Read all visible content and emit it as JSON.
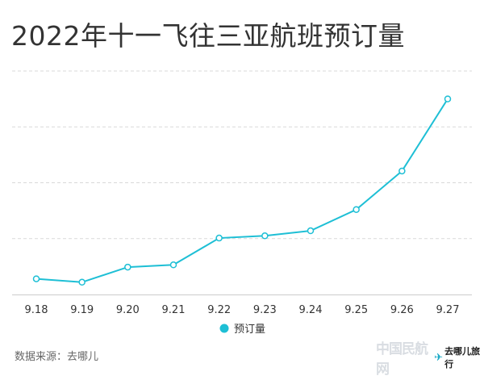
{
  "title": "2022年十一飞往三亚航班预订量",
  "source": "数据来源：去哪儿",
  "watermark": {
    "left_text": "中国民航网",
    "logo_text": "去哪儿旅行",
    "logo_icon": "bird-icon"
  },
  "colors": {
    "line": "#1ebfd5",
    "grid": "#d9d9d9",
    "axis": "#cccccc",
    "text": "#333333"
  },
  "chart_data": {
    "type": "line",
    "categories": [
      "9.18",
      "9.19",
      "9.20",
      "9.21",
      "9.22",
      "9.23",
      "9.24",
      "9.25",
      "9.26",
      "9.27"
    ],
    "series": [
      {
        "name": "预订量",
        "values": [
          0.28,
          0.22,
          0.49,
          0.53,
          1.01,
          1.05,
          1.14,
          1.52,
          2.21,
          3.5
        ]
      }
    ],
    "ylim": [
      0,
      4
    ],
    "grid": true,
    "legend": "bottom-center",
    "y_tick_labels": false
  }
}
